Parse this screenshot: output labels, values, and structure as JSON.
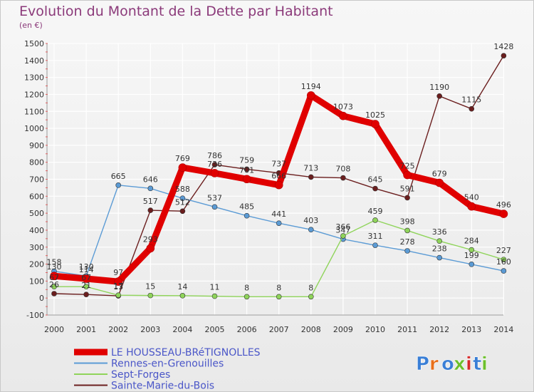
{
  "chart_data": {
    "type": "line",
    "title": "Evolution du Montant de la Dette par Habitant",
    "subtitle": "(en €)",
    "ylim": [
      -100,
      1500
    ],
    "yticks": [
      -100,
      0,
      100,
      200,
      300,
      400,
      500,
      600,
      700,
      800,
      900,
      1000,
      1100,
      1200,
      1300,
      1400,
      1500
    ],
    "categories": [
      "2000",
      "2001",
      "2002",
      "2003",
      "2004",
      "2005",
      "2006",
      "2007",
      "2008",
      "2009",
      "2010",
      "2011",
      "2012",
      "2013",
      "2014"
    ],
    "grid": true,
    "legend_position": "bottom-left",
    "series": [
      {
        "name": "LE HOUSSEAU-BRéTIGNOLLES",
        "color": "#e00000",
        "values": [
          130,
          114,
          97,
          293,
          769,
          736,
          701,
          666,
          1194,
          1073,
          1025,
          725,
          679,
          540,
          496
        ]
      },
      {
        "name": "Rennes-en-Grenouilles",
        "color": "#5b9bd5",
        "values": [
          158,
          130,
          665,
          646,
          588,
          537,
          485,
          441,
          403,
          347,
          311,
          278,
          238,
          199,
          160
        ]
      },
      {
        "name": "Sept-Forges",
        "color": "#8fd45a",
        "values": [
          67,
          67,
          17,
          15,
          14,
          11,
          8,
          8,
          8,
          366,
          459,
          398,
          336,
          284,
          227
        ]
      },
      {
        "name": "Sainte-Marie-du-Bois",
        "color": "#6b1e1e",
        "values": [
          26,
          21,
          13,
          517,
          512,
          786,
          759,
          737,
          713,
          708,
          645,
          591,
          1190,
          1115,
          1428
        ]
      }
    ]
  },
  "branding": {
    "logo": "Proxiti"
  }
}
